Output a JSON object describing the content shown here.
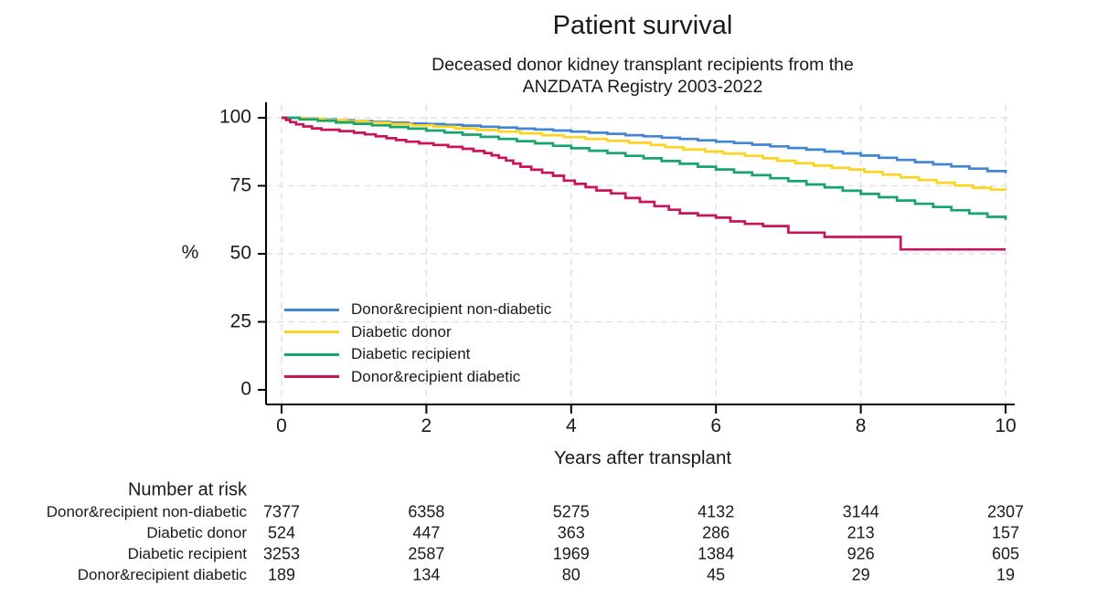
{
  "header": {
    "title": "Patient survival",
    "subtitle_line1": "Deceased donor kidney transplant recipients from the",
    "subtitle_line2": "ANZDATA Registry 2003-2022"
  },
  "axes": {
    "y_unit": "%",
    "x_title": "Years after transplant"
  },
  "legend": {
    "items": [
      {
        "label": "Donor&recipient non-diabetic",
        "slug": "non-diabetic",
        "color": "#4285d4"
      },
      {
        "label": "Diabetic donor",
        "slug": "diabetic-donor",
        "color": "#fdd31d"
      },
      {
        "label": "Diabetic recipient",
        "slug": "diabetic-recipient",
        "color": "#16a56e"
      },
      {
        "label": "Donor&recipient diabetic",
        "slug": "diabetic-both",
        "color": "#c9135a"
      }
    ]
  },
  "chart_data": {
    "type": "line",
    "subtype": "kaplan-meier-step",
    "title": "Patient survival",
    "subtitle": "Deceased donor kidney transplant recipients from the ANZDATA Registry 2003-2022",
    "xlabel": "Years after transplant",
    "ylabel": "%",
    "xlim": [
      0,
      10
    ],
    "ylim": [
      0,
      100
    ],
    "x_ticks": [
      0,
      2,
      4,
      6,
      8,
      10
    ],
    "y_ticks": [
      0,
      25,
      50,
      75,
      100
    ],
    "grid": true,
    "legend_position": "inside lower-left of plot",
    "series": [
      {
        "name": "Donor&recipient non-diabetic",
        "slug": "non-diabetic",
        "color": "#4285d4",
        "points": [
          [
            0,
            100
          ],
          [
            0.25,
            99.7
          ],
          [
            0.5,
            99.4
          ],
          [
            0.75,
            99.1
          ],
          [
            1,
            98.8
          ],
          [
            1.25,
            98.5
          ],
          [
            1.5,
            98.2
          ],
          [
            1.75,
            97.9
          ],
          [
            2,
            97.7
          ],
          [
            2.25,
            97.4
          ],
          [
            2.5,
            97.1
          ],
          [
            2.75,
            96.7
          ],
          [
            3,
            96.4
          ],
          [
            3.25,
            96.0
          ],
          [
            3.5,
            95.7
          ],
          [
            3.75,
            95.3
          ],
          [
            4,
            94.9
          ],
          [
            4.25,
            94.5
          ],
          [
            4.5,
            94.1
          ],
          [
            4.75,
            93.6
          ],
          [
            5,
            93.2
          ],
          [
            5.25,
            92.7
          ],
          [
            5.5,
            92.2
          ],
          [
            5.75,
            91.7
          ],
          [
            6,
            91.2
          ],
          [
            6.25,
            90.7
          ],
          [
            6.5,
            90.1
          ],
          [
            6.75,
            89.5
          ],
          [
            7,
            88.9
          ],
          [
            7.25,
            88.3
          ],
          [
            7.5,
            87.6
          ],
          [
            7.75,
            86.9
          ],
          [
            8,
            86.1
          ],
          [
            8.25,
            85.3
          ],
          [
            8.5,
            84.5
          ],
          [
            8.75,
            83.7
          ],
          [
            9,
            82.9
          ],
          [
            9.25,
            82.1
          ],
          [
            9.5,
            81.3
          ],
          [
            9.75,
            80.4
          ],
          [
            10,
            79.6
          ]
        ]
      },
      {
        "name": "Diabetic donor",
        "slug": "diabetic-donor",
        "color": "#fdd31d",
        "points": [
          [
            0,
            100
          ],
          [
            0.3,
            99.6
          ],
          [
            0.6,
            99.1
          ],
          [
            0.9,
            98.7
          ],
          [
            1.2,
            98.2
          ],
          [
            1.5,
            97.7
          ],
          [
            1.8,
            97.2
          ],
          [
            2.1,
            96.7
          ],
          [
            2.4,
            96.1
          ],
          [
            2.7,
            95.5
          ],
          [
            3,
            94.9
          ],
          [
            3.3,
            94.3
          ],
          [
            3.6,
            93.6
          ],
          [
            3.9,
            92.9
          ],
          [
            4.2,
            92.2
          ],
          [
            4.5,
            91.5
          ],
          [
            4.8,
            90.8
          ],
          [
            5.1,
            90.0
          ],
          [
            5.3,
            89.2
          ],
          [
            5.55,
            88.4
          ],
          [
            5.85,
            87.6
          ],
          [
            6.1,
            86.8
          ],
          [
            6.4,
            86.0
          ],
          [
            6.65,
            85.1
          ],
          [
            6.85,
            84.2
          ],
          [
            7.1,
            83.3
          ],
          [
            7.35,
            82.4
          ],
          [
            7.6,
            81.6
          ],
          [
            7.85,
            81.0
          ],
          [
            8.05,
            80.1
          ],
          [
            8.3,
            79.1
          ],
          [
            8.55,
            78.1
          ],
          [
            8.8,
            77.1
          ],
          [
            9.05,
            76.1
          ],
          [
            9.3,
            75.1
          ],
          [
            9.55,
            74.3
          ],
          [
            9.8,
            73.6
          ],
          [
            10,
            73.3
          ]
        ]
      },
      {
        "name": "Diabetic recipient",
        "slug": "diabetic-recipient",
        "color": "#16a56e",
        "points": [
          [
            0,
            100
          ],
          [
            0.25,
            99.4
          ],
          [
            0.5,
            98.9
          ],
          [
            0.75,
            98.3
          ],
          [
            1,
            97.8
          ],
          [
            1.25,
            97.2
          ],
          [
            1.5,
            96.6
          ],
          [
            1.75,
            96.0
          ],
          [
            2,
            95.3
          ],
          [
            2.25,
            94.6
          ],
          [
            2.5,
            93.8
          ],
          [
            2.75,
            93.0
          ],
          [
            3,
            92.2
          ],
          [
            3.25,
            91.4
          ],
          [
            3.5,
            90.6
          ],
          [
            3.75,
            89.7
          ],
          [
            4,
            88.8
          ],
          [
            4.25,
            87.9
          ],
          [
            4.5,
            87.0
          ],
          [
            4.75,
            86.0
          ],
          [
            5,
            85.1
          ],
          [
            5.25,
            84.1
          ],
          [
            5.5,
            83.1
          ],
          [
            5.75,
            82.0
          ],
          [
            6,
            81.0
          ],
          [
            6.25,
            79.9
          ],
          [
            6.5,
            78.9
          ],
          [
            6.75,
            77.8
          ],
          [
            7,
            76.7
          ],
          [
            7.25,
            75.5
          ],
          [
            7.5,
            74.4
          ],
          [
            7.75,
            73.2
          ],
          [
            8,
            72.0
          ],
          [
            8.25,
            70.8
          ],
          [
            8.5,
            69.6
          ],
          [
            8.75,
            68.4
          ],
          [
            9,
            67.2
          ],
          [
            9.25,
            66.0
          ],
          [
            9.5,
            64.8
          ],
          [
            9.75,
            63.6
          ],
          [
            10,
            62.5
          ]
        ]
      },
      {
        "name": "Donor&recipient diabetic",
        "slug": "diabetic-both",
        "color": "#c9135a",
        "points": [
          [
            0,
            100
          ],
          [
            0.06,
            99.2
          ],
          [
            0.12,
            98.4
          ],
          [
            0.2,
            97.6
          ],
          [
            0.3,
            96.8
          ],
          [
            0.42,
            96.1
          ],
          [
            0.55,
            95.6
          ],
          [
            0.8,
            95.1
          ],
          [
            1,
            94.5
          ],
          [
            1.15,
            93.9
          ],
          [
            1.3,
            93.2
          ],
          [
            1.45,
            92.5
          ],
          [
            1.58,
            91.8
          ],
          [
            1.72,
            91.2
          ],
          [
            1.9,
            90.6
          ],
          [
            2.1,
            90.0
          ],
          [
            2.3,
            89.3
          ],
          [
            2.5,
            88.6
          ],
          [
            2.65,
            87.8
          ],
          [
            2.8,
            87.0
          ],
          [
            2.9,
            86.2
          ],
          [
            3,
            85.3
          ],
          [
            3.1,
            84.3
          ],
          [
            3.2,
            83.2
          ],
          [
            3.3,
            82.0
          ],
          [
            3.45,
            80.9
          ],
          [
            3.6,
            79.8
          ],
          [
            3.75,
            78.7
          ],
          [
            3.9,
            76.9
          ],
          [
            4.05,
            75.7
          ],
          [
            4.2,
            74.5
          ],
          [
            4.35,
            73.3
          ],
          [
            4.55,
            72.2
          ],
          [
            4.75,
            70.5
          ],
          [
            4.95,
            69.1
          ],
          [
            5.15,
            67.5
          ],
          [
            5.35,
            66.2
          ],
          [
            5.5,
            64.9
          ],
          [
            5.75,
            64.1
          ],
          [
            6,
            63.3
          ],
          [
            6.2,
            61.9
          ],
          [
            6.4,
            61.0
          ],
          [
            6.65,
            60.2
          ],
          [
            7,
            57.8
          ],
          [
            7.5,
            56.2
          ],
          [
            8.55,
            51.6
          ],
          [
            10,
            51.6
          ]
        ]
      }
    ]
  },
  "risk_table": {
    "header": "Number at risk",
    "time_points": [
      0,
      2,
      4,
      6,
      8,
      10
    ],
    "rows": [
      {
        "label": "Donor&recipient non-diabetic",
        "counts": [
          7377,
          6358,
          5275,
          4132,
          3144,
          2307
        ]
      },
      {
        "label": "Diabetic donor",
        "counts": [
          524,
          447,
          363,
          286,
          213,
          157
        ]
      },
      {
        "label": "Diabetic recipient",
        "counts": [
          3253,
          2587,
          1969,
          1384,
          926,
          605
        ]
      },
      {
        "label": "Donor&recipient diabetic",
        "counts": [
          189,
          134,
          80,
          45,
          29,
          19
        ]
      }
    ]
  }
}
